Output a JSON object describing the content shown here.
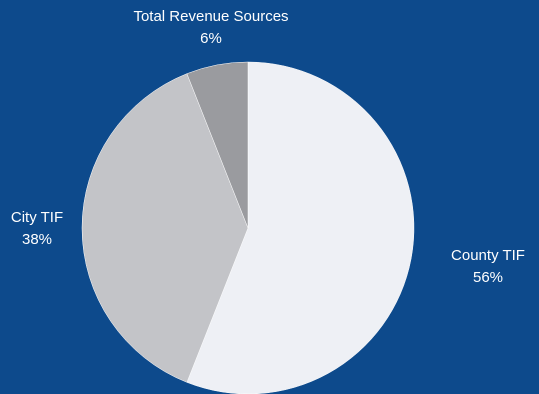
{
  "chart_data": {
    "type": "pie",
    "title": "",
    "slices": [
      {
        "label": "County TIF",
        "value": 56,
        "value_label": "56%",
        "color": "#eef0f5"
      },
      {
        "label": "City TIF",
        "value": 38,
        "value_label": "38%",
        "color": "#c3c4c8"
      },
      {
        "label": "Total Revenue Sources",
        "value": 6,
        "value_label": "6%",
        "color": "#9a9b9f"
      }
    ]
  },
  "colors": {
    "background": "#0d4a8c",
    "label_text": "#ffffff"
  }
}
